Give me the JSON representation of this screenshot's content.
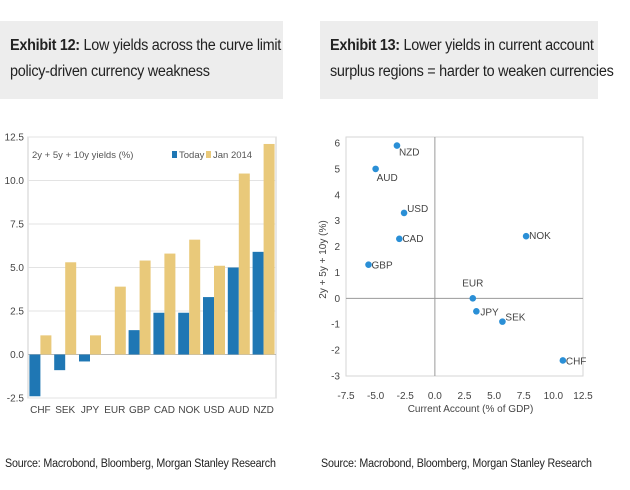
{
  "exhibit12": {
    "title_bold": "Exhibit 12:",
    "title_line1": "Low yields across the curve limit",
    "title_line2": "policy-driven currency weakness",
    "source": "Source: Macrobond, Bloomberg, Morgan Stanley Research"
  },
  "exhibit13": {
    "title_bold": "Exhibit 13:",
    "title_line1": "Lower yields in current account",
    "title_line2": "surplus regions = harder to weaken currencies",
    "source": "Source: Macrobond, Bloomberg, Morgan Stanley Research"
  },
  "colors": {
    "today": "#1f77b4",
    "jan2014": "#e9c97a",
    "dot": "#2a8fd6"
  },
  "chart_data": [
    {
      "type": "bar",
      "title": "2y + 5y + 10y yields (%)",
      "categories": [
        "CHF",
        "SEK",
        "JPY",
        "EUR",
        "GBP",
        "CAD",
        "NOK",
        "USD",
        "AUD",
        "NZD"
      ],
      "series": [
        {
          "name": "Today",
          "values": [
            -2.4,
            -0.9,
            -0.4,
            0.0,
            1.4,
            2.4,
            2.4,
            3.3,
            5.0,
            5.9
          ]
        },
        {
          "name": "Jan 2014",
          "values": [
            1.1,
            5.3,
            1.1,
            3.9,
            5.4,
            5.8,
            6.6,
            5.1,
            10.4,
            12.1
          ]
        }
      ],
      "ylim": [
        -2.5,
        12.5
      ],
      "yticks": [
        "-2.5",
        "0.0",
        "2.5",
        "5.0",
        "7.5",
        "10.0",
        "12.5"
      ],
      "legend_position": "top-right",
      "grid": true
    },
    {
      "type": "scatter",
      "xlabel": "Current Account (% of GDP)",
      "ylabel": "2y + 5y + 10y (%)",
      "xlim": [
        -7.5,
        12.5
      ],
      "ylim": [
        -3,
        6
      ],
      "xticks": [
        "-7.5",
        "-5.0",
        "-2.5",
        "0.0",
        "2.5",
        "5.0",
        "7.5",
        "10.0",
        "12.5"
      ],
      "yticks": [
        "-3",
        "-2",
        "-1",
        "0",
        "1",
        "2",
        "3",
        "4",
        "5",
        "6"
      ],
      "points": [
        {
          "label": "NZD",
          "x": -3.2,
          "y": 5.9
        },
        {
          "label": "AUD",
          "x": -5.0,
          "y": 5.0
        },
        {
          "label": "USD",
          "x": -2.6,
          "y": 3.3
        },
        {
          "label": "CAD",
          "x": -3.0,
          "y": 2.3
        },
        {
          "label": "GBP",
          "x": -5.6,
          "y": 1.3
        },
        {
          "label": "NOK",
          "x": 7.7,
          "y": 2.4
        },
        {
          "label": "EUR",
          "x": 3.2,
          "y": 0.0
        },
        {
          "label": "JPY",
          "x": 3.5,
          "y": -0.5
        },
        {
          "label": "SEK",
          "x": 5.7,
          "y": -0.9
        },
        {
          "label": "CHF",
          "x": 10.8,
          "y": -2.4
        }
      ],
      "grid": false
    }
  ]
}
